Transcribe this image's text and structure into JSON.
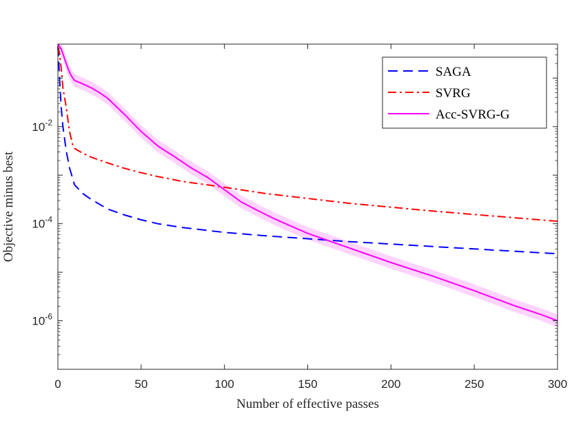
{
  "chart_data": {
    "type": "line",
    "title": "",
    "xlabel": "Number of effective passes",
    "ylabel": "Objective minus best",
    "xlim": [
      0,
      300
    ],
    "ylim_log10": [
      -7,
      -0.3
    ],
    "yscale": "log",
    "grid": false,
    "legend_position": "top-right",
    "x_ticks": [
      {
        "value": 0,
        "label": "0"
      },
      {
        "value": 50,
        "label": "50"
      },
      {
        "value": 100,
        "label": "100"
      },
      {
        "value": 150,
        "label": "150"
      },
      {
        "value": 200,
        "label": "200"
      },
      {
        "value": 250,
        "label": "250"
      },
      {
        "value": 300,
        "label": "300"
      }
    ],
    "y_ticks": [
      {
        "exp": -2,
        "base": "10",
        "sup": "-2"
      },
      {
        "exp": -4,
        "base": "10",
        "sup": "-4"
      },
      {
        "exp": -6,
        "base": "10",
        "sup": "-6"
      }
    ],
    "series": [
      {
        "name": "SAGA",
        "color": "#0000FF",
        "dash": "dashed",
        "x": [
          0,
          1,
          2,
          3,
          5,
          7,
          10,
          15,
          20,
          30,
          40,
          50,
          60,
          75,
          100,
          125,
          150,
          175,
          200,
          225,
          250,
          275,
          300
        ],
        "log10y": [
          -0.35,
          -1.0,
          -1.6,
          -2.0,
          -2.5,
          -2.85,
          -3.2,
          -3.38,
          -3.5,
          -3.7,
          -3.82,
          -3.92,
          -4.0,
          -4.08,
          -4.18,
          -4.25,
          -4.31,
          -4.37,
          -4.42,
          -4.47,
          -4.52,
          -4.57,
          -4.62
        ]
      },
      {
        "name": "SVRG",
        "color": "#FF0000",
        "dash": "dashdot",
        "x": [
          0,
          1,
          2,
          3,
          5,
          7,
          9,
          10,
          15,
          20,
          30,
          40,
          50,
          60,
          75,
          100,
          125,
          150,
          175,
          200,
          225,
          250,
          275,
          300
        ],
        "log10y": [
          -0.35,
          -0.5,
          -0.8,
          -1.2,
          -1.6,
          -2.1,
          -2.4,
          -2.45,
          -2.55,
          -2.63,
          -2.75,
          -2.86,
          -2.95,
          -3.03,
          -3.13,
          -3.25,
          -3.38,
          -3.48,
          -3.58,
          -3.66,
          -3.74,
          -3.81,
          -3.88,
          -3.95
        ]
      },
      {
        "name": "Acc-SVRG-G",
        "color": "#FF00FF",
        "dash": "solid",
        "x": [
          0,
          1,
          2,
          3,
          4,
          5,
          6,
          8,
          10,
          15,
          20,
          25,
          30,
          40,
          50,
          60,
          70,
          80,
          90,
          100,
          110,
          120,
          130,
          140,
          150,
          175,
          200,
          225,
          250,
          275,
          290,
          300
        ],
        "log10y": [
          -0.3,
          -0.35,
          -0.4,
          -0.5,
          -0.6,
          -0.7,
          -0.8,
          -0.95,
          -1.05,
          -1.12,
          -1.2,
          -1.3,
          -1.42,
          -1.75,
          -2.1,
          -2.4,
          -2.62,
          -2.85,
          -3.05,
          -3.3,
          -3.55,
          -3.73,
          -3.9,
          -4.05,
          -4.2,
          -4.5,
          -4.8,
          -5.08,
          -5.38,
          -5.7,
          -5.87,
          -6.0
        ],
        "band_halfwidth_log10": 0.13
      }
    ]
  }
}
